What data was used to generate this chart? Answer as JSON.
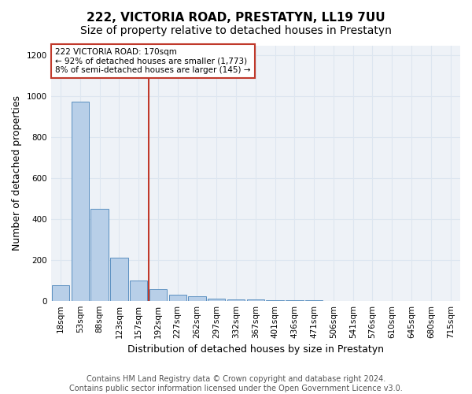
{
  "title": "222, VICTORIA ROAD, PRESTATYN, LL19 7UU",
  "subtitle": "Size of property relative to detached houses in Prestatyn",
  "xlabel": "Distribution of detached houses by size in Prestatyn",
  "ylabel": "Number of detached properties",
  "bin_labels": [
    "18sqm",
    "53sqm",
    "88sqm",
    "123sqm",
    "157sqm",
    "192sqm",
    "227sqm",
    "262sqm",
    "297sqm",
    "332sqm",
    "367sqm",
    "401sqm",
    "436sqm",
    "471sqm",
    "506sqm",
    "541sqm",
    "576sqm",
    "610sqm",
    "645sqm",
    "680sqm",
    "715sqm"
  ],
  "bar_values": [
    75,
    975,
    450,
    210,
    100,
    55,
    30,
    20,
    10,
    5,
    5,
    2,
    1,
    1,
    0,
    0,
    0,
    0,
    0,
    0,
    0
  ],
  "bar_color": "#b8cfe8",
  "bar_edgecolor": "#5a8fc0",
  "vline_x_index": 4.5,
  "vline_color": "#c0392b",
  "annotation_text": "222 VICTORIA ROAD: 170sqm\n← 92% of detached houses are smaller (1,773)\n8% of semi-detached houses are larger (145) →",
  "annotation_box_edgecolor": "#c0392b",
  "annotation_text_color": "#000000",
  "ylim": [
    0,
    1250
  ],
  "yticks": [
    0,
    200,
    400,
    600,
    800,
    1000,
    1200
  ],
  "grid_color": "#dde6f0",
  "bg_color": "#eef2f7",
  "footer_text": "Contains HM Land Registry data © Crown copyright and database right 2024.\nContains public sector information licensed under the Open Government Licence v3.0.",
  "title_fontsize": 11,
  "subtitle_fontsize": 10,
  "axis_label_fontsize": 9,
  "tick_fontsize": 7.5,
  "footer_fontsize": 7
}
